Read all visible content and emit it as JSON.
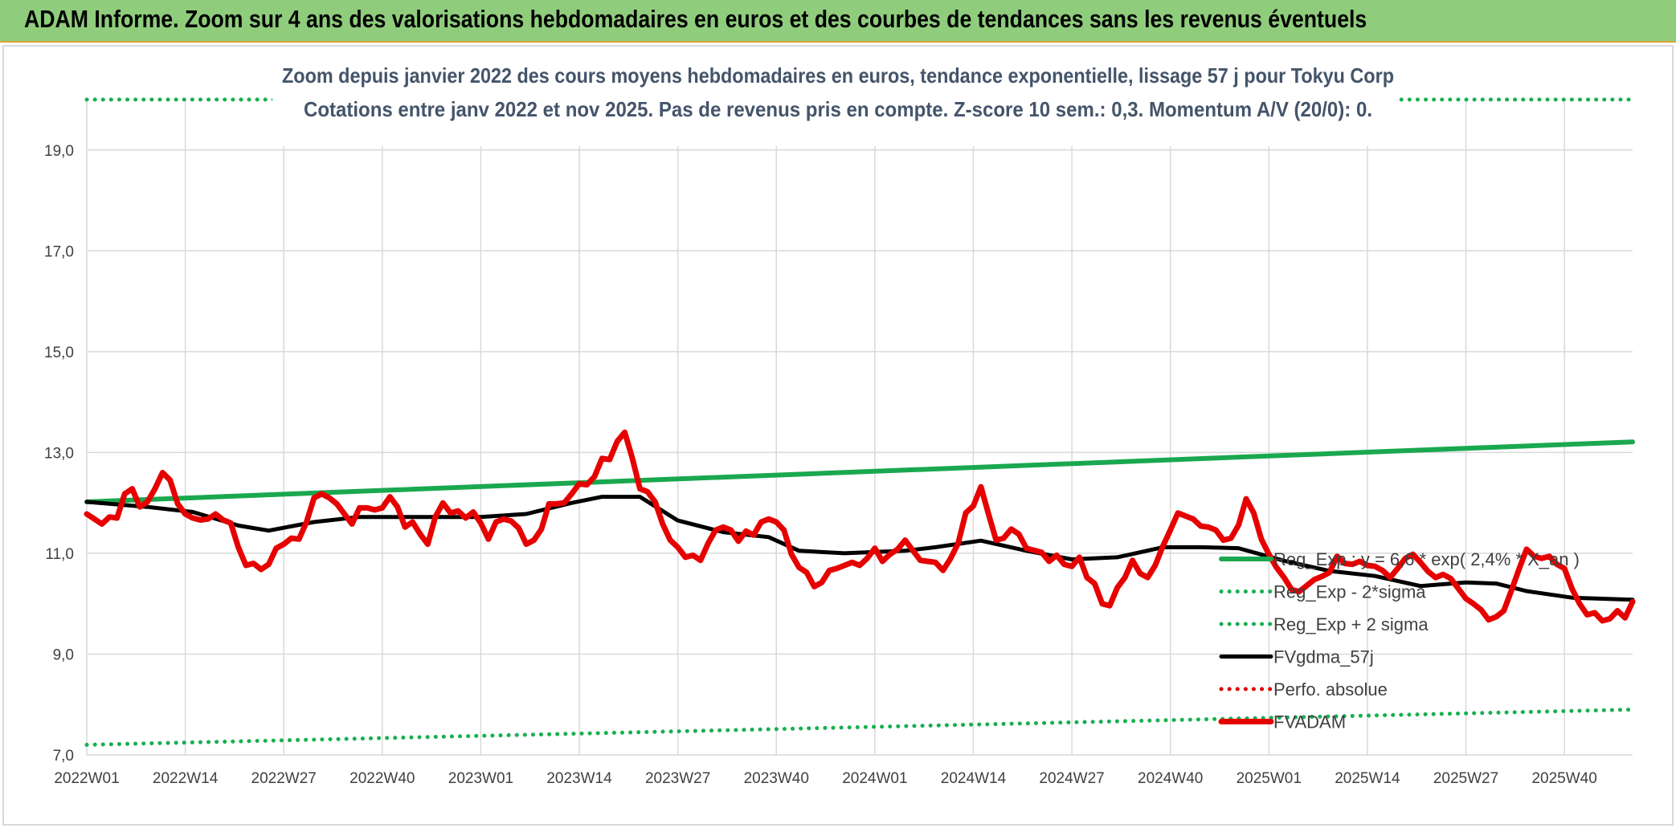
{
  "header": {
    "text": "ADAM Informe. Zoom sur 4 ans des valorisations hebdomadaires en euros et des courbes de tendances sans les revenus éventuels"
  },
  "colors": {
    "header_bg": "#8fcd7c",
    "reg_exp": "#1aa84f",
    "sigma_lines": "#18b050",
    "fvgdma": "#000000",
    "perfo": "#e00000",
    "fvadam": "#e60000",
    "title_text": "#44546a"
  },
  "chart_data": {
    "type": "line",
    "title": [
      "Zoom depuis janvier 2022 des cours moyens hebdomadaires en euros, tendance exponentielle, lissage 57 j pour Tokyu Corp",
      "Cotations entre janv 2022 et nov 2025. Pas de revenus pris en compte. Z-score 10 sem.: 0,3. Momentum A/V (20/0): 0."
    ],
    "ylim": [
      7.0,
      20.0
    ],
    "yticks": [
      "7,0",
      "9,0",
      "11,0",
      "13,0",
      "15,0",
      "17,0",
      "19,0"
    ],
    "ytick_values": [
      7,
      9,
      11,
      13,
      15,
      17,
      19
    ],
    "x_range": [
      0,
      204
    ],
    "xtick_labels": [
      "2022W01",
      "2022W14",
      "2022W27",
      "2022W40",
      "2023W01",
      "2023W14",
      "2023W27",
      "2023W40",
      "2024W01",
      "2024W14",
      "2024W27",
      "2024W40",
      "2025W01",
      "2025W14",
      "2025W27",
      "2025W40"
    ],
    "xtick_positions": [
      0,
      13,
      26,
      39,
      52,
      65,
      78,
      91,
      104,
      117,
      130,
      143,
      156,
      169,
      182,
      195
    ],
    "grid": true,
    "legend_position": "bottom-right",
    "series": [
      {
        "name": "Reg_Exp : y = 6,6 * exp( 2,4% * X_an )",
        "style": "solid",
        "color": "#1aa84f",
        "x": [
          0,
          204
        ],
        "values": [
          12.02,
          13.21
        ]
      },
      {
        "name": "Reg_Exp - 2*sigma",
        "style": "dotted",
        "color": "#18b050",
        "x": [
          0,
          204
        ],
        "values": [
          7.2,
          7.9
        ]
      },
      {
        "name": "Reg_Exp + 2 sigma",
        "style": "dotted",
        "color": "#18b050",
        "x": [
          0,
          204
        ],
        "values": [
          20.0,
          20.0
        ]
      },
      {
        "name": "FVgdma_57j",
        "style": "solid",
        "color": "#000000",
        "x": [
          0,
          8,
          14,
          20,
          24,
          30,
          36,
          44,
          52,
          58,
          64,
          68,
          73,
          78,
          84,
          90,
          94,
          100,
          108,
          112,
          118,
          124,
          130,
          136,
          142,
          147,
          152,
          158,
          164,
          170,
          176,
          182,
          186,
          190,
          196,
          204
        ],
        "values": [
          12.02,
          11.92,
          11.82,
          11.55,
          11.45,
          11.62,
          11.72,
          11.72,
          11.72,
          11.78,
          12.0,
          12.12,
          12.12,
          11.65,
          11.42,
          11.32,
          11.05,
          11.0,
          11.05,
          11.12,
          11.25,
          11.05,
          10.88,
          10.92,
          11.12,
          11.12,
          11.1,
          10.85,
          10.65,
          10.55,
          10.35,
          10.42,
          10.4,
          10.25,
          10.12,
          10.08
        ]
      },
      {
        "name": "Perfo. absolue",
        "style": "dotted",
        "color": "#e00000",
        "x": [],
        "values": []
      },
      {
        "name": "FVADAM",
        "style": "solid",
        "color": "#e60000",
        "x": [
          0,
          1,
          2,
          3,
          4,
          5,
          6,
          7,
          8,
          9,
          10,
          11,
          12,
          13,
          14,
          15,
          16,
          17,
          18,
          19,
          20,
          21,
          22,
          23,
          24,
          25,
          26,
          27,
          28,
          29,
          30,
          31,
          32,
          33,
          34,
          35,
          36,
          37,
          38,
          39,
          40,
          41,
          42,
          43,
          44,
          45,
          46,
          47,
          48,
          49,
          50,
          51,
          52,
          53,
          54,
          55,
          56,
          57,
          58,
          59,
          60,
          61,
          62,
          63,
          64,
          65,
          66,
          67,
          68,
          69,
          70,
          71,
          72,
          73,
          74,
          75,
          76,
          77,
          78,
          79,
          80,
          81,
          82,
          83,
          84,
          85,
          86,
          87,
          88,
          89,
          90,
          91,
          92,
          93,
          94,
          95,
          96,
          97,
          98,
          99,
          100,
          101,
          102,
          103,
          104,
          105,
          106,
          107,
          108,
          109,
          110,
          111,
          112,
          113,
          114,
          115,
          116,
          117,
          118,
          119,
          120,
          121,
          122,
          123,
          124,
          125,
          126,
          127,
          128,
          129,
          130,
          131,
          132,
          133,
          134,
          135,
          136,
          137,
          138,
          139,
          140,
          141,
          142,
          143,
          144,
          145,
          146,
          147,
          148,
          149,
          150,
          151,
          152,
          153,
          154,
          155,
          156,
          157,
          158,
          159,
          160,
          161,
          162,
          163,
          164,
          165,
          166,
          167,
          168,
          169,
          170,
          171,
          172,
          173,
          174,
          175,
          176,
          177,
          178,
          179,
          180,
          181,
          182,
          183,
          184,
          185,
          186,
          187,
          188,
          189,
          190,
          191,
          192,
          193,
          194,
          195,
          196,
          197,
          198,
          199,
          200,
          201,
          202,
          203,
          204
        ],
        "values": [
          11.78,
          11.68,
          11.58,
          11.72,
          11.7,
          12.18,
          12.28,
          11.92,
          12.02,
          12.28,
          12.6,
          12.45,
          11.98,
          11.78,
          11.7,
          11.66,
          11.68,
          11.78,
          11.66,
          11.6,
          11.12,
          10.76,
          10.8,
          10.68,
          10.78,
          11.1,
          11.18,
          11.3,
          11.28,
          11.62,
          12.1,
          12.18,
          12.1,
          11.98,
          11.78,
          11.58,
          11.9,
          11.9,
          11.86,
          11.9,
          12.12,
          11.92,
          11.52,
          11.62,
          11.38,
          11.18,
          11.72,
          12.0,
          11.8,
          11.84,
          11.7,
          11.82,
          11.6,
          11.28,
          11.62,
          11.68,
          11.64,
          11.5,
          11.18,
          11.26,
          11.48,
          11.98,
          11.98,
          12.0,
          12.18,
          12.38,
          12.36,
          12.52,
          12.88,
          12.86,
          13.22,
          13.4,
          12.88,
          12.28,
          12.22,
          12.02,
          11.58,
          11.26,
          11.12,
          10.92,
          10.96,
          10.86,
          11.2,
          11.46,
          11.52,
          11.46,
          11.24,
          11.44,
          11.36,
          11.62,
          11.68,
          11.62,
          11.46,
          10.98,
          10.72,
          10.62,
          10.34,
          10.42,
          10.66,
          10.7,
          10.76,
          10.82,
          10.76,
          10.9,
          11.1,
          10.84,
          10.98,
          11.08,
          11.26,
          11.06,
          10.86,
          10.84,
          10.82,
          10.66,
          10.9,
          11.2,
          11.8,
          11.94,
          12.32,
          11.78,
          11.26,
          11.3,
          11.48,
          11.38,
          11.1,
          11.06,
          11.02,
          10.84,
          10.96,
          10.78,
          10.74,
          10.92,
          10.52,
          10.4,
          10.0,
          9.96,
          10.32,
          10.52,
          10.86,
          10.6,
          10.52,
          10.76,
          11.14,
          11.46,
          11.8,
          11.74,
          11.68,
          11.54,
          11.52,
          11.46,
          11.26,
          11.3,
          11.56,
          12.08,
          11.8,
          11.28,
          10.98,
          10.72,
          10.52,
          10.28,
          10.24,
          10.36,
          10.48,
          10.54,
          10.62,
          10.94,
          10.8,
          10.78,
          10.84,
          10.76,
          10.74,
          10.66,
          10.52,
          10.7,
          10.9,
          10.98,
          10.82,
          10.64,
          10.52,
          10.58,
          10.5,
          10.3,
          10.1,
          10.0,
          9.88,
          9.68,
          9.74,
          9.86,
          10.26,
          10.68,
          11.08,
          10.94,
          10.9,
          10.94,
          10.78,
          10.7,
          10.3,
          10.0,
          9.78,
          9.82,
          9.66,
          9.7,
          9.86,
          9.72,
          10.04
        ]
      }
    ]
  }
}
